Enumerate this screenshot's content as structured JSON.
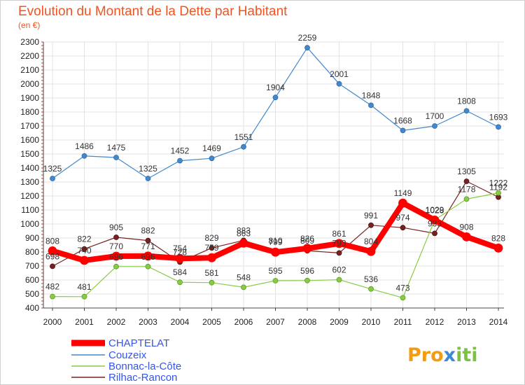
{
  "chart_data": {
    "type": "line",
    "title": "Evolution du Montant de la Dette par Habitant",
    "subtitle": "(en €)",
    "categories": [
      "2000",
      "2001",
      "2002",
      "2003",
      "2004",
      "2005",
      "2006",
      "2007",
      "2008",
      "2009",
      "2010",
      "2011",
      "2012",
      "2013",
      "2014"
    ],
    "ylim": [
      400,
      2300
    ],
    "yticks": [
      400,
      500,
      600,
      700,
      800,
      900,
      1000,
      1100,
      1200,
      1300,
      1400,
      1500,
      1600,
      1700,
      1800,
      1900,
      2000,
      2100,
      2200,
      2300
    ],
    "grid": true,
    "legend": "bottom-left",
    "series": [
      {
        "name": "CHAPTELAT",
        "color": "#ff0000",
        "values": [
          808,
          740,
          770,
          771,
          754,
          759,
          863,
          799,
          826,
          861,
          804,
          1149,
          1028,
          908,
          828
        ]
      },
      {
        "name": "Couzeix",
        "color": "#4488cc",
        "values": [
          1325,
          1486,
          1475,
          1325,
          1452,
          1469,
          1551,
          1904,
          2259,
          2001,
          1848,
          1668,
          1700,
          1808,
          1693
        ]
      },
      {
        "name": "Bonnac-la-Côte",
        "color": "#88cc44",
        "values": [
          482,
          481,
          696,
          696,
          584,
          581,
          548,
          595,
          596,
          602,
          536,
          473,
          1029,
          1178,
          1222
        ]
      },
      {
        "name": "Rilhac-Rancon",
        "color": "#772222",
        "values": [
          698,
          822,
          905,
          882,
          728,
          829,
          883,
          810,
          809,
          793,
          991,
          974,
          933,
          1305,
          1192
        ]
      }
    ]
  },
  "brand": {
    "part1": "Pro",
    "part2": "x",
    "part3": "iti"
  }
}
